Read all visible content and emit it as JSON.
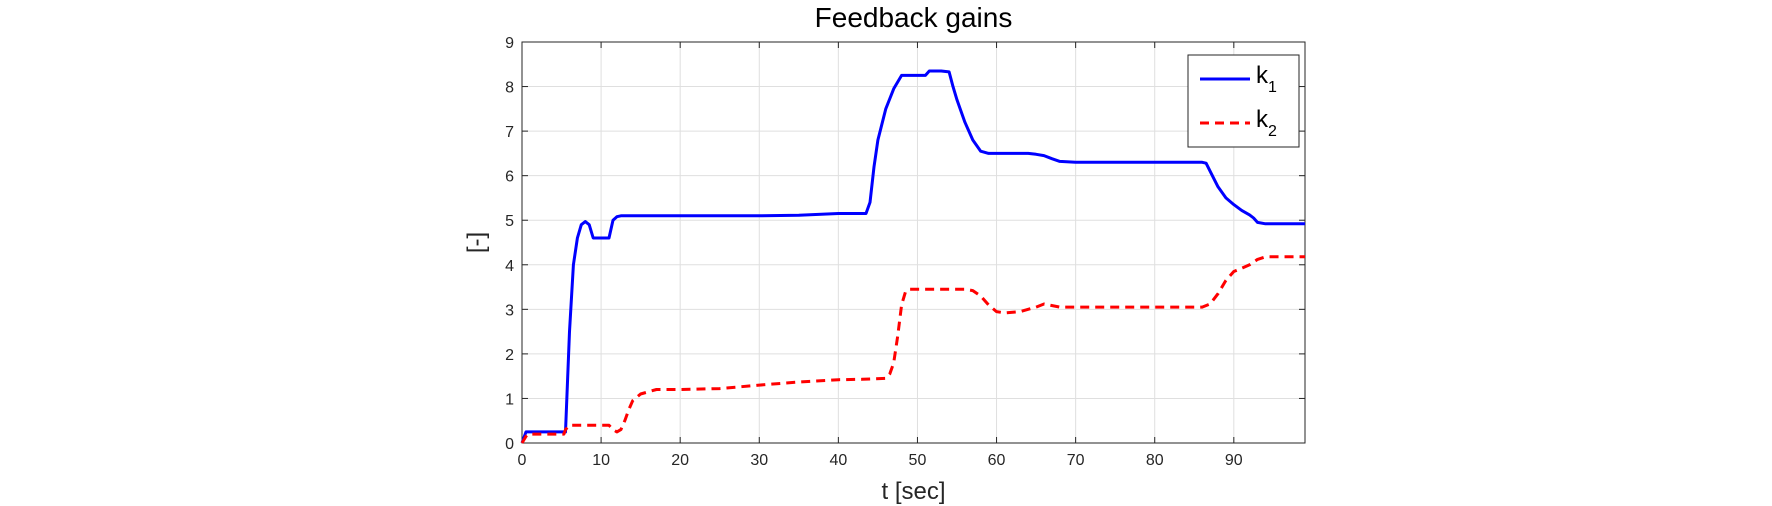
{
  "chart_data": {
    "type": "line",
    "title": "Feedback gains",
    "xlabel": "t [sec]",
    "ylabel": "[-]",
    "xlim": [
      0,
      99
    ],
    "ylim": [
      0,
      9
    ],
    "xticks": [
      0,
      10,
      20,
      30,
      40,
      50,
      60,
      70,
      80,
      90
    ],
    "yticks": [
      0,
      1,
      2,
      3,
      4,
      5,
      6,
      7,
      8,
      9
    ],
    "grid": true,
    "legend_position": "top-right",
    "series": [
      {
        "name": "k",
        "subscript": "1",
        "color": "#0000ff",
        "style": "solid",
        "points": [
          [
            0,
            0
          ],
          [
            0.5,
            0.25
          ],
          [
            5.3,
            0.25
          ],
          [
            5.5,
            0.25
          ],
          [
            6,
            2.5
          ],
          [
            6.5,
            4
          ],
          [
            7,
            4.6
          ],
          [
            7.5,
            4.9
          ],
          [
            8,
            4.97
          ],
          [
            8.5,
            4.9
          ],
          [
            9,
            4.6
          ],
          [
            10,
            4.6
          ],
          [
            11,
            4.6
          ],
          [
            11.5,
            5.0
          ],
          [
            12,
            5.08
          ],
          [
            12.5,
            5.1
          ],
          [
            15,
            5.1
          ],
          [
            20,
            5.1
          ],
          [
            25,
            5.1
          ],
          [
            30,
            5.1
          ],
          [
            35,
            5.11
          ],
          [
            40,
            5.15
          ],
          [
            43.5,
            5.15
          ],
          [
            44,
            5.4
          ],
          [
            44.5,
            6.2
          ],
          [
            45,
            6.8
          ],
          [
            46,
            7.5
          ],
          [
            47,
            7.95
          ],
          [
            48,
            8.25
          ],
          [
            49,
            8.25
          ],
          [
            51,
            8.25
          ],
          [
            51.5,
            8.35
          ],
          [
            53,
            8.35
          ],
          [
            54,
            8.33
          ],
          [
            54.5,
            8.0
          ],
          [
            55,
            7.7
          ],
          [
            56,
            7.2
          ],
          [
            57,
            6.8
          ],
          [
            58,
            6.55
          ],
          [
            59,
            6.5
          ],
          [
            60,
            6.5
          ],
          [
            62,
            6.5
          ],
          [
            64,
            6.5
          ],
          [
            65,
            6.48
          ],
          [
            66,
            6.45
          ],
          [
            67,
            6.38
          ],
          [
            68,
            6.32
          ],
          [
            70,
            6.3
          ],
          [
            75,
            6.3
          ],
          [
            80,
            6.3
          ],
          [
            85,
            6.3
          ],
          [
            86,
            6.3
          ],
          [
            86.5,
            6.28
          ],
          [
            87,
            6.1
          ],
          [
            88,
            5.75
          ],
          [
            89,
            5.5
          ],
          [
            90,
            5.35
          ],
          [
            91,
            5.22
          ],
          [
            92,
            5.12
          ],
          [
            92.5,
            5.05
          ],
          [
            93,
            4.95
          ],
          [
            94,
            4.92
          ],
          [
            99,
            4.92
          ]
        ]
      },
      {
        "name": "k",
        "subscript": "2",
        "color": "#ff0000",
        "style": "dashed",
        "points": [
          [
            0,
            0
          ],
          [
            0.5,
            0.15
          ],
          [
            0.8,
            0.2
          ],
          [
            5.3,
            0.2
          ],
          [
            5.5,
            0.3
          ],
          [
            6,
            0.4
          ],
          [
            10,
            0.4
          ],
          [
            11,
            0.4
          ],
          [
            11.5,
            0.3
          ],
          [
            12,
            0.25
          ],
          [
            12.5,
            0.3
          ],
          [
            13,
            0.5
          ],
          [
            13.5,
            0.75
          ],
          [
            14,
            0.95
          ],
          [
            15,
            1.1
          ],
          [
            17,
            1.2
          ],
          [
            20,
            1.2
          ],
          [
            25,
            1.22
          ],
          [
            30,
            1.3
          ],
          [
            35,
            1.37
          ],
          [
            40,
            1.42
          ],
          [
            43,
            1.43
          ],
          [
            46,
            1.45
          ],
          [
            46.5,
            1.55
          ],
          [
            47,
            1.8
          ],
          [
            47.5,
            2.4
          ],
          [
            48,
            3.1
          ],
          [
            48.5,
            3.4
          ],
          [
            49,
            3.45
          ],
          [
            52,
            3.45
          ],
          [
            56,
            3.45
          ],
          [
            57,
            3.42
          ],
          [
            58,
            3.3
          ],
          [
            59,
            3.1
          ],
          [
            60,
            2.95
          ],
          [
            61,
            2.92
          ],
          [
            63,
            2.95
          ],
          [
            65,
            3.05
          ],
          [
            66,
            3.12
          ],
          [
            68,
            3.05
          ],
          [
            70,
            3.05
          ],
          [
            75,
            3.05
          ],
          [
            80,
            3.05
          ],
          [
            86,
            3.05
          ],
          [
            87,
            3.12
          ],
          [
            88,
            3.35
          ],
          [
            89,
            3.65
          ],
          [
            90,
            3.85
          ],
          [
            91,
            3.92
          ],
          [
            92,
            4.0
          ],
          [
            93,
            4.12
          ],
          [
            94,
            4.18
          ],
          [
            99,
            4.18
          ]
        ]
      }
    ]
  }
}
